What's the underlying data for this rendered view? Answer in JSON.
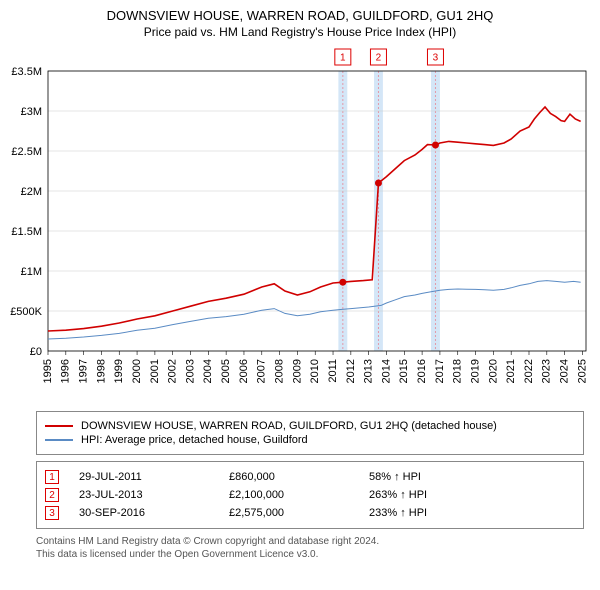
{
  "title1": "DOWNSVIEW HOUSE, WARREN ROAD, GUILDFORD, GU1 2HQ",
  "title2": "Price paid vs. HM Land Registry's House Price Index (HPI)",
  "chart": {
    "type": "line",
    "background_color": "#ffffff",
    "grid_color": "#cccccc",
    "vband_color": "#d4e6f7",
    "vline_color": "#e39aa8",
    "series1_color": "#d00000",
    "series2_color": "#5a8bc4",
    "marker_color": "#d00000",
    "x_years": [
      1995,
      1996,
      1997,
      1998,
      1999,
      2000,
      2001,
      2002,
      2003,
      2004,
      2005,
      2006,
      2007,
      2008,
      2009,
      2010,
      2011,
      2012,
      2013,
      2014,
      2015,
      2016,
      2017,
      2018,
      2019,
      2020,
      2021,
      2022,
      2023,
      2024,
      2025
    ],
    "xlim": [
      1995,
      2025.2
    ],
    "ylim": [
      0,
      3500000
    ],
    "ytick_step": 500000,
    "ytick_labels": [
      "£0",
      "£500K",
      "£1M",
      "£1.5M",
      "£2M",
      "£2.5M",
      "£3M",
      "£3.5M"
    ],
    "xtick_labels": [
      "1995",
      "1996",
      "1997",
      "1998",
      "1999",
      "2000",
      "2001",
      "2002",
      "2003",
      "2004",
      "2005",
      "2006",
      "2007",
      "2008",
      "2009",
      "2010",
      "2011",
      "2012",
      "2013",
      "2014",
      "2015",
      "2016",
      "2017",
      "2018",
      "2019",
      "2020",
      "2021",
      "2022",
      "2023",
      "2024",
      "2025"
    ],
    "vband_ranges": [
      [
        2011.3,
        2011.8
      ],
      [
        2013.3,
        2013.8
      ],
      [
        2016.5,
        2017.0
      ]
    ],
    "markers": [
      {
        "label": "1",
        "x": 2011.55
      },
      {
        "label": "2",
        "x": 2013.55
      },
      {
        "label": "3",
        "x": 2016.75
      }
    ],
    "sale_points": [
      {
        "x": 2011.55,
        "y": 860000
      },
      {
        "x": 2013.55,
        "y": 2100000
      },
      {
        "x": 2016.75,
        "y": 2575000
      }
    ],
    "series1": [
      [
        1995,
        250000
      ],
      [
        1996,
        260000
      ],
      [
        1997,
        280000
      ],
      [
        1998,
        310000
      ],
      [
        1999,
        350000
      ],
      [
        2000,
        400000
      ],
      [
        2001,
        440000
      ],
      [
        2002,
        500000
      ],
      [
        2003,
        560000
      ],
      [
        2004,
        620000
      ],
      [
        2005,
        660000
      ],
      [
        2006,
        710000
      ],
      [
        2007,
        800000
      ],
      [
        2007.7,
        840000
      ],
      [
        2008.3,
        750000
      ],
      [
        2009,
        700000
      ],
      [
        2009.7,
        740000
      ],
      [
        2010.3,
        800000
      ],
      [
        2011,
        850000
      ],
      [
        2011.55,
        860000
      ],
      [
        2012,
        870000
      ],
      [
        2012.7,
        880000
      ],
      [
        2013.2,
        890000
      ],
      [
        2013.55,
        2100000
      ],
      [
        2014,
        2180000
      ],
      [
        2014.5,
        2280000
      ],
      [
        2015,
        2380000
      ],
      [
        2015.6,
        2450000
      ],
      [
        2016,
        2520000
      ],
      [
        2016.3,
        2580000
      ],
      [
        2016.75,
        2575000
      ],
      [
        2017,
        2600000
      ],
      [
        2017.5,
        2620000
      ],
      [
        2018,
        2610000
      ],
      [
        2018.5,
        2600000
      ],
      [
        2019,
        2590000
      ],
      [
        2019.5,
        2580000
      ],
      [
        2020,
        2570000
      ],
      [
        2020.6,
        2600000
      ],
      [
        2021,
        2650000
      ],
      [
        2021.5,
        2750000
      ],
      [
        2022,
        2800000
      ],
      [
        2022.3,
        2900000
      ],
      [
        2022.6,
        2980000
      ],
      [
        2022.9,
        3050000
      ],
      [
        2023.2,
        2970000
      ],
      [
        2023.5,
        2930000
      ],
      [
        2023.8,
        2880000
      ],
      [
        2024,
        2870000
      ],
      [
        2024.3,
        2960000
      ],
      [
        2024.6,
        2900000
      ],
      [
        2024.9,
        2870000
      ]
    ],
    "series2": [
      [
        1995,
        150000
      ],
      [
        1996,
        160000
      ],
      [
        1997,
        175000
      ],
      [
        1998,
        195000
      ],
      [
        1999,
        220000
      ],
      [
        2000,
        260000
      ],
      [
        2001,
        285000
      ],
      [
        2002,
        330000
      ],
      [
        2003,
        370000
      ],
      [
        2004,
        410000
      ],
      [
        2005,
        430000
      ],
      [
        2006,
        460000
      ],
      [
        2007,
        510000
      ],
      [
        2007.7,
        530000
      ],
      [
        2008.3,
        470000
      ],
      [
        2009,
        440000
      ],
      [
        2009.7,
        460000
      ],
      [
        2010.3,
        490000
      ],
      [
        2011,
        510000
      ],
      [
        2011.5,
        520000
      ],
      [
        2012,
        530000
      ],
      [
        2013,
        550000
      ],
      [
        2013.7,
        570000
      ],
      [
        2014,
        600000
      ],
      [
        2014.5,
        640000
      ],
      [
        2015,
        680000
      ],
      [
        2015.6,
        700000
      ],
      [
        2016,
        720000
      ],
      [
        2016.5,
        740000
      ],
      [
        2017,
        760000
      ],
      [
        2017.5,
        770000
      ],
      [
        2018,
        775000
      ],
      [
        2018.5,
        772000
      ],
      [
        2019,
        770000
      ],
      [
        2019.5,
        765000
      ],
      [
        2020,
        760000
      ],
      [
        2020.6,
        770000
      ],
      [
        2021,
        790000
      ],
      [
        2021.5,
        820000
      ],
      [
        2022,
        840000
      ],
      [
        2022.5,
        870000
      ],
      [
        2023,
        880000
      ],
      [
        2023.5,
        870000
      ],
      [
        2024,
        860000
      ],
      [
        2024.5,
        870000
      ],
      [
        2024.9,
        860000
      ]
    ]
  },
  "legend": {
    "item1": {
      "label": "DOWNSVIEW HOUSE, WARREN ROAD, GUILDFORD, GU1 2HQ (detached house)",
      "color": "#d00000"
    },
    "item2": {
      "label": "HPI: Average price, detached house, Guildford",
      "color": "#5a8bc4"
    }
  },
  "sales": [
    {
      "num": "1",
      "date": "29-JUL-2011",
      "price": "£860,000",
      "pct": "58% ↑ HPI"
    },
    {
      "num": "2",
      "date": "23-JUL-2013",
      "price": "£2,100,000",
      "pct": "263% ↑ HPI"
    },
    {
      "num": "3",
      "date": "30-SEP-2016",
      "price": "£2,575,000",
      "pct": "233% ↑ HPI"
    }
  ],
  "attribution_line1": "Contains HM Land Registry data © Crown copyright and database right 2024.",
  "attribution_line2": "This data is licensed under the Open Government Licence v3.0."
}
